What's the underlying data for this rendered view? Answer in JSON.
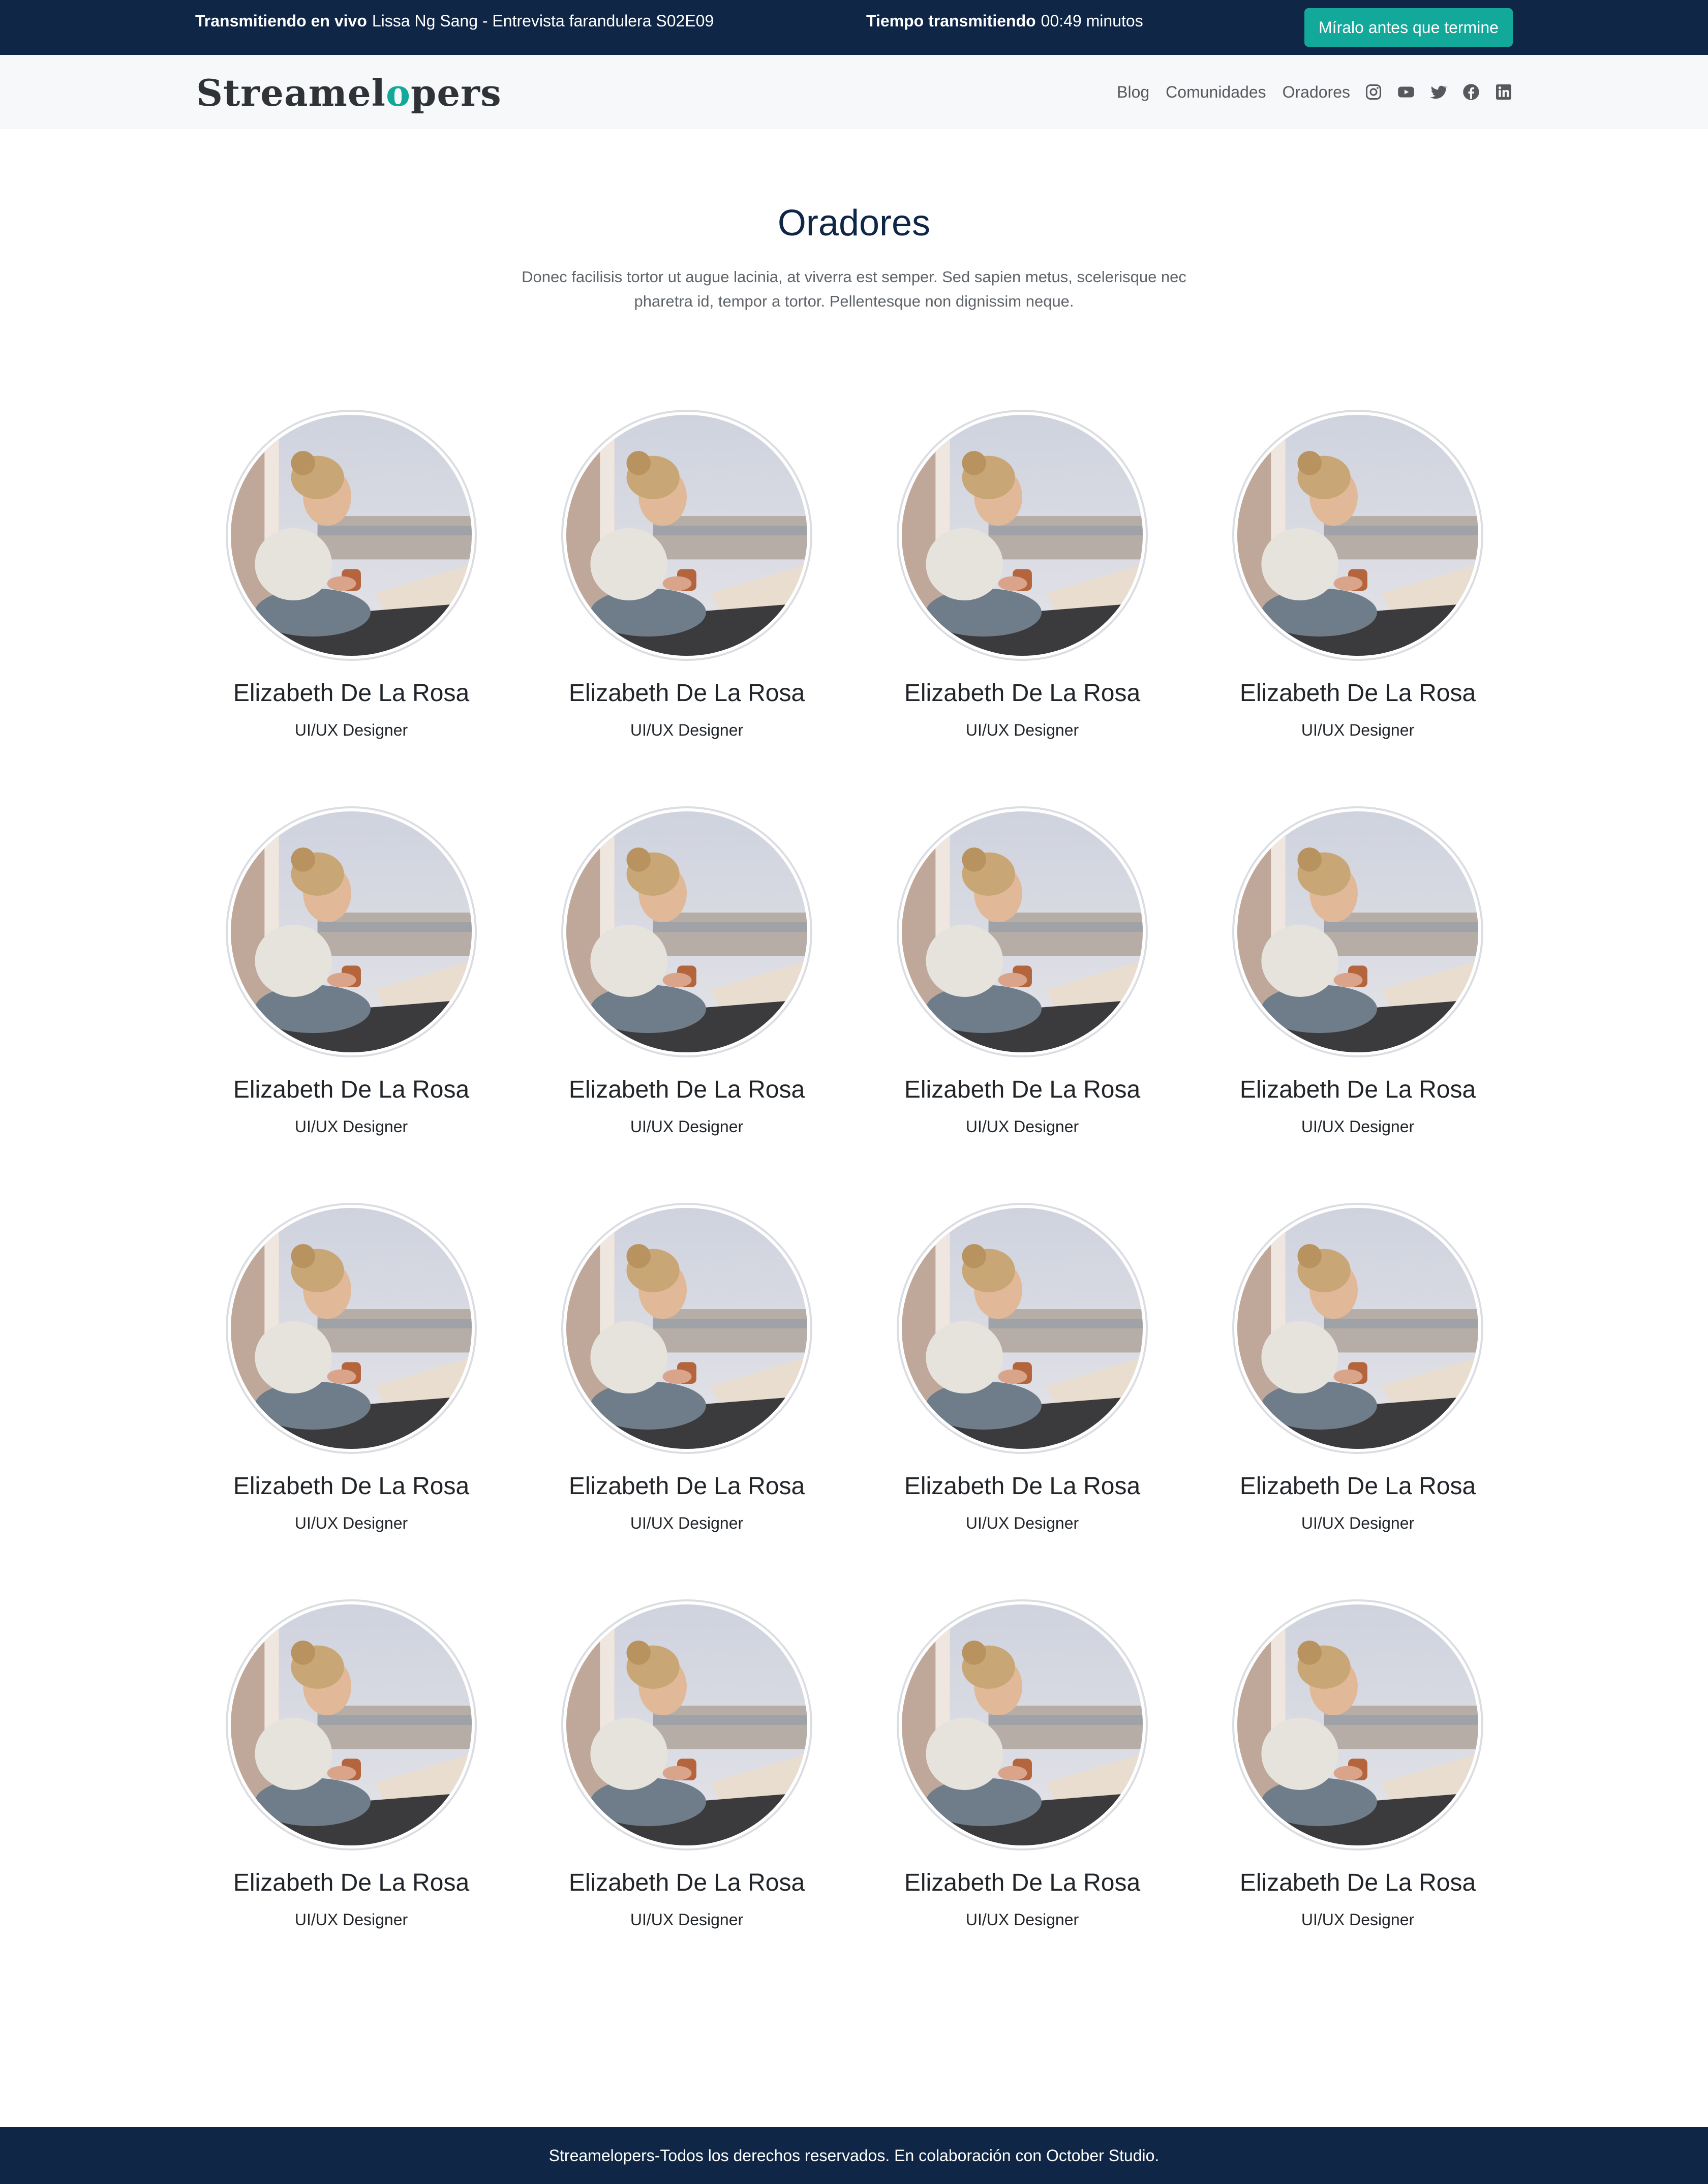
{
  "live_bar": {
    "live_label": "Transmitiendo en vivo",
    "live_title": "Lissa Ng Sang - Entrevista farandulera S02E09",
    "time_label": "Tiempo transmitiendo",
    "time_value": "00:49 minutos",
    "watch_button": "Míralo antes que termine"
  },
  "nav": {
    "logo_prefix": "Streamel",
    "logo_mark": "o",
    "logo_suffix": "pers",
    "links": [
      "Blog",
      "Comunidades",
      "Oradores"
    ],
    "social_icons": [
      "instagram-icon",
      "youtube-icon",
      "twitter-icon",
      "facebook-icon",
      "linkedin-icon"
    ]
  },
  "header": {
    "title": "Oradores",
    "description": "Donec facilisis tortor ut augue lacinia, at viverra est semper. Sed sapien metus, scelerisque nec pharetra id, tempor a tortor. Pellentesque non dignissim neque."
  },
  "speakers": [
    {
      "name": "Elizabeth De La Rosa",
      "role": "UI/UX Designer"
    },
    {
      "name": "Elizabeth De La Rosa",
      "role": "UI/UX Designer"
    },
    {
      "name": "Elizabeth De La Rosa",
      "role": "UI/UX Designer"
    },
    {
      "name": "Elizabeth De La Rosa",
      "role": "UI/UX Designer"
    },
    {
      "name": "Elizabeth De La Rosa",
      "role": "UI/UX Designer"
    },
    {
      "name": "Elizabeth De La Rosa",
      "role": "UI/UX Designer"
    },
    {
      "name": "Elizabeth De La Rosa",
      "role": "UI/UX Designer"
    },
    {
      "name": "Elizabeth De La Rosa",
      "role": "UI/UX Designer"
    },
    {
      "name": "Elizabeth De La Rosa",
      "role": "UI/UX Designer"
    },
    {
      "name": "Elizabeth De La Rosa",
      "role": "UI/UX Designer"
    },
    {
      "name": "Elizabeth De La Rosa",
      "role": "UI/UX Designer"
    },
    {
      "name": "Elizabeth De La Rosa",
      "role": "UI/UX Designer"
    },
    {
      "name": "Elizabeth De La Rosa",
      "role": "UI/UX Designer"
    },
    {
      "name": "Elizabeth De La Rosa",
      "role": "UI/UX Designer"
    },
    {
      "name": "Elizabeth De La Rosa",
      "role": "UI/UX Designer"
    },
    {
      "name": "Elizabeth De La Rosa",
      "role": "UI/UX Designer"
    }
  ],
  "footer": {
    "text": "Streamelopers-Todos los derechos reservados. En colaboración con October Studio."
  },
  "colors": {
    "navy": "#0f2646",
    "accent": "#12a89a",
    "nav_bg": "#f7f8f9"
  }
}
